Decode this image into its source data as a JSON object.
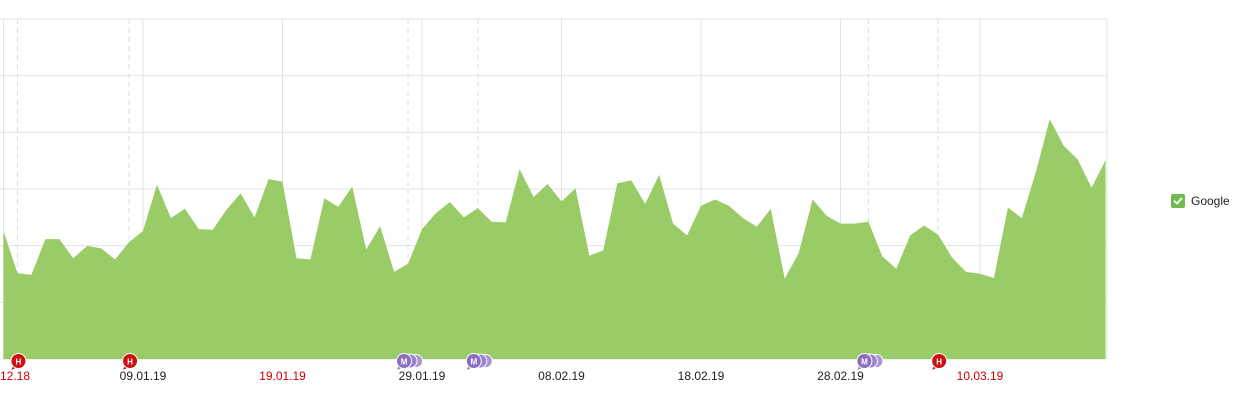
{
  "chart_data": {
    "type": "area",
    "title": "",
    "xlabel": "",
    "ylabel": "",
    "x_tick_labels": [
      {
        "label": "12.18",
        "date": "2018-12-30",
        "weekend": true,
        "partial": true
      },
      {
        "label": "09.01.19",
        "date": "2019-01-09",
        "weekend": false
      },
      {
        "label": "19.01.19",
        "date": "2019-01-19",
        "weekend": true
      },
      {
        "label": "29.01.19",
        "date": "2019-01-29",
        "weekend": false
      },
      {
        "label": "08.02.19",
        "date": "2019-02-08",
        "weekend": false
      },
      {
        "label": "18.02.19",
        "date": "2019-02-18",
        "weekend": false
      },
      {
        "label": "28.02.19",
        "date": "2019-02-28",
        "weekend": false
      },
      {
        "label": "10.03.19",
        "date": "2019-03-10",
        "weekend": true
      }
    ],
    "grid": true,
    "legend_position": "right",
    "series": [
      {
        "name": "Google",
        "color": "#99cc66",
        "x": [
          "2018-12-30",
          "2018-12-31",
          "2019-01-01",
          "2019-01-02",
          "2019-01-03",
          "2019-01-04",
          "2019-01-05",
          "2019-01-06",
          "2019-01-07",
          "2019-01-08",
          "2019-01-09",
          "2019-01-10",
          "2019-01-11",
          "2019-01-12",
          "2019-01-13",
          "2019-01-14",
          "2019-01-15",
          "2019-01-16",
          "2019-01-17",
          "2019-01-18",
          "2019-01-19",
          "2019-01-20",
          "2019-01-21",
          "2019-01-22",
          "2019-01-23",
          "2019-01-24",
          "2019-01-25",
          "2019-01-26",
          "2019-01-27",
          "2019-01-28",
          "2019-01-29",
          "2019-01-30",
          "2019-01-31",
          "2019-02-01",
          "2019-02-02",
          "2019-02-03",
          "2019-02-04",
          "2019-02-05",
          "2019-02-06",
          "2019-02-07",
          "2019-02-08",
          "2019-02-09",
          "2019-02-10",
          "2019-02-11",
          "2019-02-12",
          "2019-02-13",
          "2019-02-14",
          "2019-02-15",
          "2019-02-16",
          "2019-02-17",
          "2019-02-18",
          "2019-02-19",
          "2019-02-20",
          "2019-02-21",
          "2019-02-22",
          "2019-02-23",
          "2019-02-24",
          "2019-02-25",
          "2019-02-26",
          "2019-02-27",
          "2019-02-28",
          "2019-03-01",
          "2019-03-02",
          "2019-03-03",
          "2019-03-04",
          "2019-03-05",
          "2019-03-06",
          "2019-03-07",
          "2019-03-08",
          "2019-03-09",
          "2019-03-10",
          "2019-03-11",
          "2019-03-12",
          "2019-03-13",
          "2019-03-14",
          "2019-03-15",
          "2019-03-16",
          "2019-03-17",
          "2019-03-18",
          "2019-03-19"
        ],
        "values": [
          2.07,
          1.39,
          1.36,
          1.94,
          1.94,
          1.63,
          1.83,
          1.79,
          1.61,
          1.89,
          2.07,
          2.82,
          2.28,
          2.43,
          2.1,
          2.09,
          2.42,
          2.68,
          2.29,
          2.91,
          2.87,
          1.63,
          1.61,
          2.6,
          2.46,
          2.79,
          1.77,
          2.15,
          1.41,
          1.54,
          2.1,
          2.36,
          2.54,
          2.29,
          2.44,
          2.22,
          2.21,
          3.07,
          2.62,
          2.83,
          2.55,
          2.76,
          1.67,
          1.76,
          2.84,
          2.89,
          2.51,
          2.98,
          2.19,
          2.0,
          2.48,
          2.58,
          2.48,
          2.28,
          2.14,
          2.43,
          1.3,
          1.71,
          2.58,
          2.32,
          2.19,
          2.19,
          2.22,
          1.66,
          1.46,
          2.0,
          2.16,
          2.01,
          1.64,
          1.41,
          1.38,
          1.31,
          2.45,
          2.28,
          3.02,
          3.88,
          3.45,
          3.23,
          2.77,
          3.22
        ]
      }
    ],
    "events": [
      {
        "date": "2018-12-31",
        "label": "H",
        "type": "red"
      },
      {
        "date": "2019-01-08",
        "label": "H",
        "type": "red"
      },
      {
        "date": "2019-01-28",
        "label": "M",
        "type": "purple"
      },
      {
        "date": "2019-02-02",
        "label": "M",
        "type": "purple"
      },
      {
        "date": "2019-03-02",
        "label": "M",
        "type": "purple"
      },
      {
        "date": "2019-03-07",
        "label": "H",
        "type": "red"
      }
    ],
    "colors": {
      "weekend_label": "#cc0000",
      "weekday_label": "#222222",
      "grid": "#e3e3e3",
      "event_red": "#cc1111",
      "event_purple": "#8a6fc0"
    }
  },
  "legend": {
    "items": [
      {
        "label": "Google",
        "checked": true,
        "color": "#71b84d"
      }
    ]
  }
}
